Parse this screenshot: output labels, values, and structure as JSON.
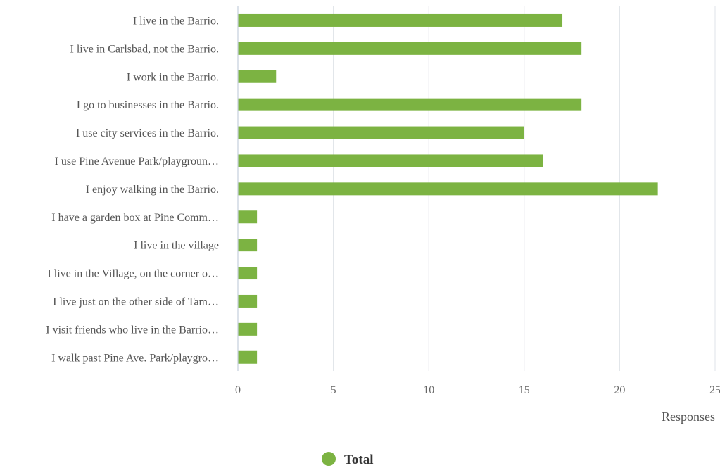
{
  "chart_data": {
    "type": "bar",
    "orientation": "horizontal",
    "categories": [
      "I live in the Barrio.",
      "I live in Carlsbad, not the Barrio.",
      "I work in the Barrio.",
      "I go to businesses in the Barrio.",
      "I use city services in the Barrio.",
      "I use Pine Avenue Park/playgroun…",
      "I enjoy walking in the Barrio.",
      "I have a garden box at Pine Comm…",
      "I live in the village",
      "I live in the Village, on the corner o…",
      "I live just on the other side of Tam…",
      "I visit friends who live in the Barrio…",
      "I walk past Pine Ave. Park/playgro…"
    ],
    "series": [
      {
        "name": "Total",
        "color": "#7cb342",
        "values": [
          17,
          18,
          2,
          18,
          15,
          16,
          22,
          1,
          1,
          1,
          1,
          1,
          1
        ]
      }
    ],
    "xlabel": "Responses",
    "ylabel": "",
    "xlim": [
      0,
      25
    ],
    "xticks": [
      "0",
      "5",
      "10",
      "15",
      "20",
      "25"
    ],
    "grid": true,
    "legend": "bottom-center"
  }
}
